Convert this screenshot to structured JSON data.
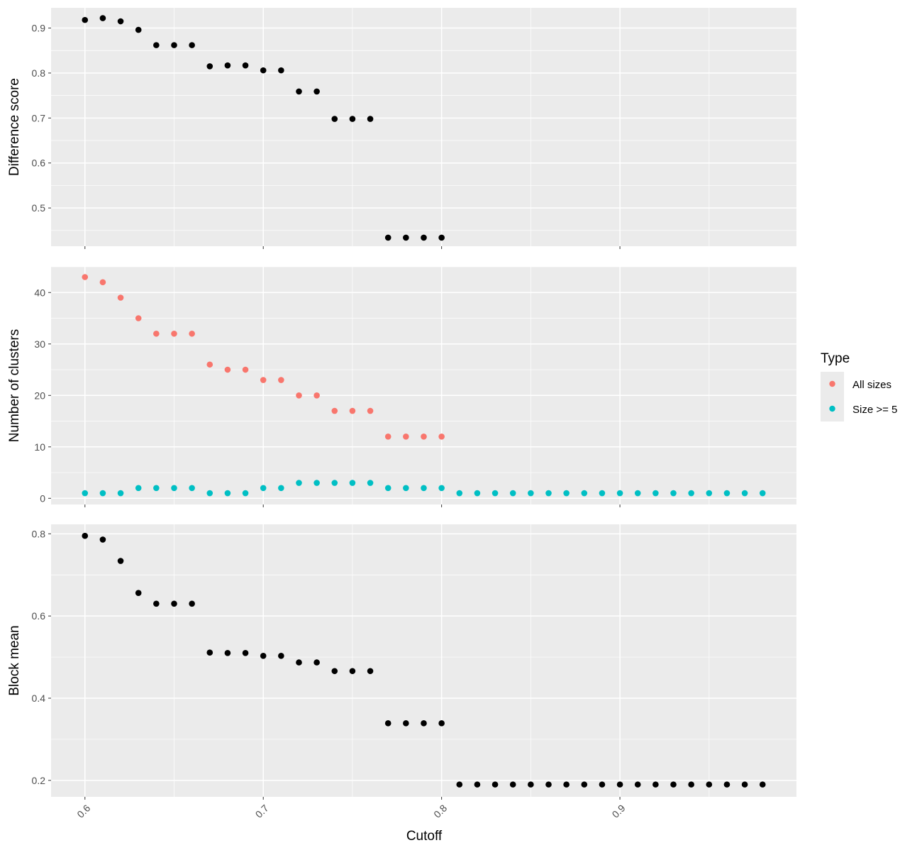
{
  "chart_data": {
    "type": "scatter",
    "xlabel": "Cutoff",
    "x_ticks": [
      0.6,
      0.7,
      0.8,
      0.9
    ],
    "x_tick_labels": [
      "0.6",
      "0.7",
      "0.8",
      "0.9"
    ],
    "xlim": [
      0.581,
      0.999
    ],
    "grid": true,
    "theme": "gray panel background, white gridlines",
    "legend": {
      "title": "Type",
      "placement": "right",
      "entries": [
        {
          "label": "All sizes",
          "color": "#F8766D"
        },
        {
          "label": "Size >= 5",
          "color": "#00BFC4"
        }
      ]
    },
    "panels": [
      {
        "ylabel": "Difference score",
        "ylim": [
          0.415,
          0.945
        ],
        "y_ticks": [
          0.5,
          0.6,
          0.7,
          0.8,
          0.9
        ],
        "y_tick_labels": [
          "0.5",
          "0.6",
          "0.7",
          "0.8",
          "0.9"
        ],
        "series": [
          {
            "color": "#000000",
            "x": [
              0.6,
              0.61,
              0.62,
              0.63,
              0.64,
              0.65,
              0.66,
              0.67,
              0.68,
              0.69,
              0.7,
              0.71,
              0.72,
              0.73,
              0.74,
              0.75,
              0.76,
              0.77,
              0.78,
              0.79,
              0.8
            ],
            "y": [
              0.918,
              0.922,
              0.915,
              0.896,
              0.862,
              0.862,
              0.862,
              0.815,
              0.817,
              0.817,
              0.806,
              0.806,
              0.759,
              0.759,
              0.698,
              0.698,
              0.698,
              0.434,
              0.434,
              0.434,
              0.434
            ]
          }
        ]
      },
      {
        "ylabel": "Number of clusters",
        "ylim": [
          -1.2,
          45.0
        ],
        "y_ticks": [
          0,
          10,
          20,
          30,
          40
        ],
        "y_tick_labels": [
          "0",
          "10",
          "20",
          "30",
          "40"
        ],
        "series": [
          {
            "name": "All sizes",
            "color": "#F8766D",
            "x": [
              0.6,
              0.61,
              0.62,
              0.63,
              0.64,
              0.65,
              0.66,
              0.67,
              0.68,
              0.69,
              0.7,
              0.71,
              0.72,
              0.73,
              0.74,
              0.75,
              0.76,
              0.77,
              0.78,
              0.79,
              0.8
            ],
            "y": [
              43,
              42,
              39,
              35,
              32,
              32,
              32,
              26,
              25,
              25,
              23,
              23,
              20,
              20,
              17,
              17,
              17,
              12,
              12,
              12,
              12
            ]
          },
          {
            "name": "Size >= 5",
            "color": "#00BFC4",
            "x": [
              0.6,
              0.61,
              0.62,
              0.63,
              0.64,
              0.65,
              0.66,
              0.67,
              0.68,
              0.69,
              0.7,
              0.71,
              0.72,
              0.73,
              0.74,
              0.75,
              0.76,
              0.77,
              0.78,
              0.79,
              0.8,
              0.81,
              0.82,
              0.83,
              0.84,
              0.85,
              0.86,
              0.87,
              0.88,
              0.89,
              0.9,
              0.91,
              0.92,
              0.93,
              0.94,
              0.95,
              0.96,
              0.97,
              0.98
            ],
            "y": [
              1,
              1,
              1,
              2,
              2,
              2,
              2,
              1,
              1,
              1,
              2,
              2,
              3,
              3,
              3,
              3,
              3,
              2,
              2,
              2,
              2,
              1,
              1,
              1,
              1,
              1,
              1,
              1,
              1,
              1,
              1,
              1,
              1,
              1,
              1,
              1,
              1,
              1,
              1
            ]
          }
        ]
      },
      {
        "ylabel": "Block mean",
        "ylim": [
          0.16,
          0.823
        ],
        "y_ticks": [
          0.2,
          0.4,
          0.6,
          0.8
        ],
        "y_tick_labels": [
          "0.2",
          "0.4",
          "0.6",
          "0.8"
        ],
        "series": [
          {
            "color": "#000000",
            "x": [
              0.6,
              0.61,
              0.62,
              0.63,
              0.64,
              0.65,
              0.66,
              0.67,
              0.68,
              0.69,
              0.7,
              0.71,
              0.72,
              0.73,
              0.74,
              0.75,
              0.76,
              0.77,
              0.78,
              0.79,
              0.8,
              0.81,
              0.82,
              0.83,
              0.84,
              0.85,
              0.86,
              0.87,
              0.88,
              0.89,
              0.9,
              0.91,
              0.92,
              0.93,
              0.94,
              0.95,
              0.96,
              0.97,
              0.98
            ],
            "y": [
              0.795,
              0.786,
              0.734,
              0.656,
              0.63,
              0.63,
              0.63,
              0.511,
              0.51,
              0.51,
              0.503,
              0.503,
              0.487,
              0.487,
              0.466,
              0.466,
              0.466,
              0.339,
              0.339,
              0.339,
              0.339,
              0.19,
              0.19,
              0.19,
              0.19,
              0.19,
              0.19,
              0.19,
              0.19,
              0.19,
              0.19,
              0.19,
              0.19,
              0.19,
              0.19,
              0.19,
              0.19,
              0.19,
              0.19
            ]
          }
        ]
      }
    ]
  }
}
